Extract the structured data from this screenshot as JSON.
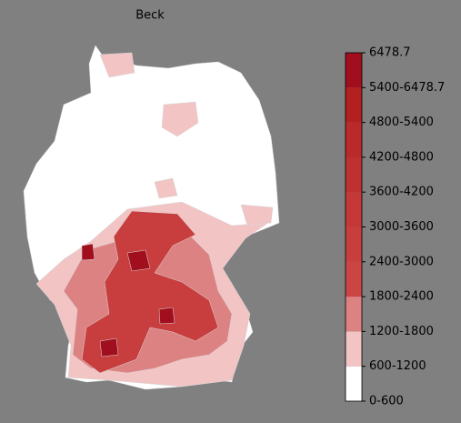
{
  "title": "Beck",
  "legend": {
    "labels": [
      "0-600",
      "600-1200",
      "1200-1800",
      "1800-2400",
      "2400-3000",
      "3000-3600",
      "3600-4200",
      "4200-4800",
      "4800-5400",
      "5400-6478.7",
      "6478.7"
    ],
    "colors": [
      "#ffffff",
      "#f2c4c4",
      "#dd8282",
      "#cc4545",
      "#c83e3e",
      "#c43838",
      "#bf3131",
      "#ba2a2a",
      "#b22020",
      "#a10f1e"
    ]
  }
}
